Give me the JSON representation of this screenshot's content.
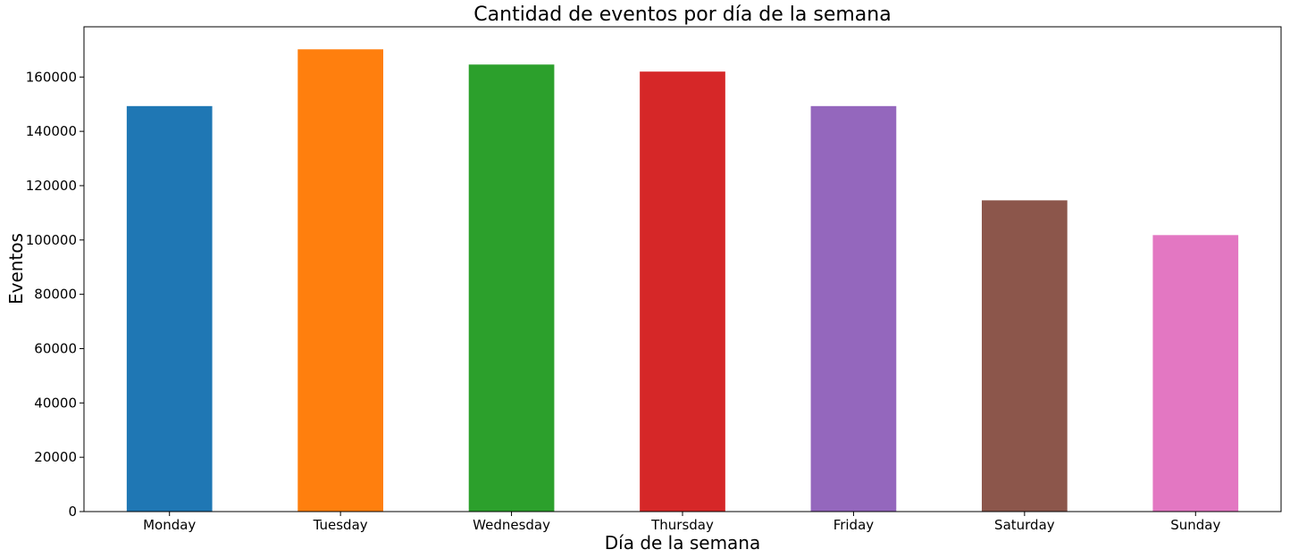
{
  "chart_data": {
    "type": "bar",
    "title": "Cantidad de eventos por día de la semana",
    "xlabel": "Día de la semana",
    "ylabel": "Eventos",
    "categories": [
      "Monday",
      "Tuesday",
      "Wednesday",
      "Thursday",
      "Friday",
      "Saturday",
      "Sunday"
    ],
    "values": [
      149300,
      170200,
      164600,
      162000,
      149300,
      114600,
      101800
    ],
    "colors": [
      "#1f77b4",
      "#ff7f0e",
      "#2ca02c",
      "#d62728",
      "#9467bd",
      "#8c564b",
      "#e377c2"
    ],
    "ylim": [
      0,
      178500
    ],
    "yticks": [
      0,
      20000,
      40000,
      60000,
      80000,
      100000,
      120000,
      140000,
      160000
    ],
    "grid": false,
    "legend": "none"
  }
}
